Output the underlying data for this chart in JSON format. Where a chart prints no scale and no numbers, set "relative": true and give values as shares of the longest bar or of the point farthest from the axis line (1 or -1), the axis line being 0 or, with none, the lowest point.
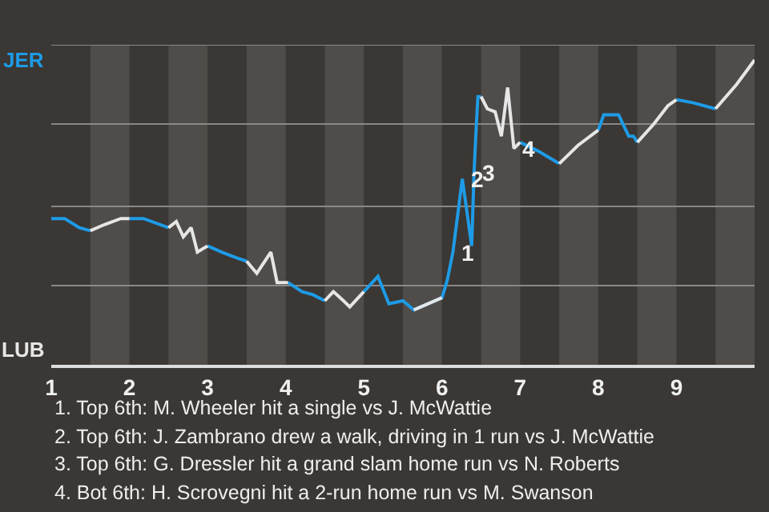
{
  "chart_data": {
    "type": "line",
    "x": [
      1,
      1.17,
      1.36,
      1.5,
      1.68,
      1.89,
      2,
      2.18,
      2.5,
      2.6,
      2.69,
      2.79,
      2.87,
      3,
      3.18,
      3.38,
      3.5,
      3.63,
      3.81,
      3.89,
      3.97,
      4.03,
      4.21,
      4.35,
      4.5,
      4.61,
      4.74,
      4.82,
      5,
      5.18,
      5.32,
      5.5,
      5.64,
      6,
      6.07,
      6.14,
      6.26,
      6.32,
      6.38,
      6.41,
      6.44,
      6.46,
      6.5,
      6.58,
      6.68,
      6.76,
      6.84,
      6.92,
      7,
      7.24,
      7.5,
      7.74,
      8,
      8.07,
      8.26,
      8.39,
      8.45,
      8.5,
      8.71,
      8.89,
      9,
      9.21,
      9.5,
      9.77,
      10
    ],
    "series": [
      {
        "color": "#1e9be6",
        "values": [
          0.48,
          0.48,
          0.45,
          0.44,
          null,
          null,
          0.48,
          0.48,
          0.45,
          null,
          null,
          null,
          null,
          0.39,
          0.37,
          0.35,
          0.34,
          null,
          null,
          null,
          null,
          0.27,
          0.24,
          0.23,
          0.21,
          null,
          null,
          null,
          0.24,
          0.29,
          0.2,
          0.21,
          0.18,
          0.22,
          0.28,
          0.37,
          0.61,
          0.5,
          0.39,
          0.63,
          0.79,
          0.88,
          0.88,
          null,
          null,
          null,
          null,
          null,
          0.73,
          0.7,
          0.66,
          null,
          0.77,
          0.82,
          0.82,
          0.75,
          0.75,
          0.73,
          null,
          null,
          0.87,
          0.86,
          0.84,
          null,
          null
        ]
      },
      {
        "color": "#e6e6e6",
        "values": [
          null,
          null,
          null,
          0.44,
          0.46,
          0.48,
          0.48,
          null,
          0.45,
          0.47,
          0.42,
          0.45,
          0.37,
          0.39,
          null,
          null,
          0.34,
          0.3,
          0.37,
          0.27,
          0.27,
          0.27,
          null,
          null,
          0.21,
          0.24,
          0.21,
          0.19,
          0.24,
          null,
          null,
          null,
          0.18,
          0.22,
          null,
          null,
          null,
          null,
          null,
          null,
          null,
          null,
          0.88,
          0.84,
          0.83,
          0.75,
          0.91,
          0.71,
          0.73,
          null,
          0.66,
          0.72,
          0.77,
          null,
          null,
          null,
          null,
          0.73,
          0.79,
          0.85,
          0.87,
          null,
          0.84,
          0.92,
          1
        ]
      }
    ],
    "relative": true,
    "xlim": [
      1,
      10
    ],
    "xticks": [
      1,
      2,
      3,
      4,
      5,
      6,
      7,
      8,
      9
    ],
    "marker": "none",
    "line_style": "solid",
    "ref_lines": [
      {
        "axis": "y",
        "value": 0.26,
        "color": "#8a8886"
      },
      {
        "axis": "y",
        "value": 0.52,
        "color": "#8a8886"
      },
      {
        "axis": "y",
        "value": 0.79,
        "color": "#8a8886"
      },
      {
        "axis": "y",
        "value": 1.05,
        "color": "#8a8886"
      }
    ],
    "bands": [
      {
        "axis": "x",
        "from": 1.5,
        "to": 2,
        "color": "#4f4c49"
      },
      {
        "axis": "x",
        "from": 2.5,
        "to": 3,
        "color": "#4f4c49"
      },
      {
        "axis": "x",
        "from": 3.5,
        "to": 4,
        "color": "#4f4c49"
      },
      {
        "axis": "x",
        "from": 4.5,
        "to": 5,
        "color": "#4f4c49"
      },
      {
        "axis": "x",
        "from": 5.5,
        "to": 6,
        "color": "#4f4c49"
      },
      {
        "axis": "x",
        "from": 6.5,
        "to": 7,
        "color": "#4f4c49"
      },
      {
        "axis": "x",
        "from": 7.5,
        "to": 8,
        "color": "#4f4c49"
      },
      {
        "axis": "x",
        "from": 8.5,
        "to": 9,
        "color": "#4f4c49"
      },
      {
        "axis": "x",
        "from": 9.5,
        "to": 10,
        "color": "#4f4c49"
      }
    ],
    "annotations": [
      {
        "text": "1",
        "x": 6.14,
        "y": 0.37
      },
      {
        "text": "2",
        "x": 6.26,
        "y": 0.61
      },
      {
        "text": "3",
        "x": 6.41,
        "y": 0.63
      },
      {
        "text": "4",
        "x": 6.92,
        "y": 0.71
      },
      "JER",
      "LUB",
      "1. Top 6th: M. Wheeler hit a single vs J. McWattie",
      "2. Top 6th: J. Zambrano drew a walk, driving in 1 run vs J. McWattie",
      "3. Top 6th: G. Dressler hit a grand slam home run vs N. Roberts",
      "4. Bot 6th: H. Scrovegni hit a 2-run home run vs M. Swanson"
    ]
  }
}
